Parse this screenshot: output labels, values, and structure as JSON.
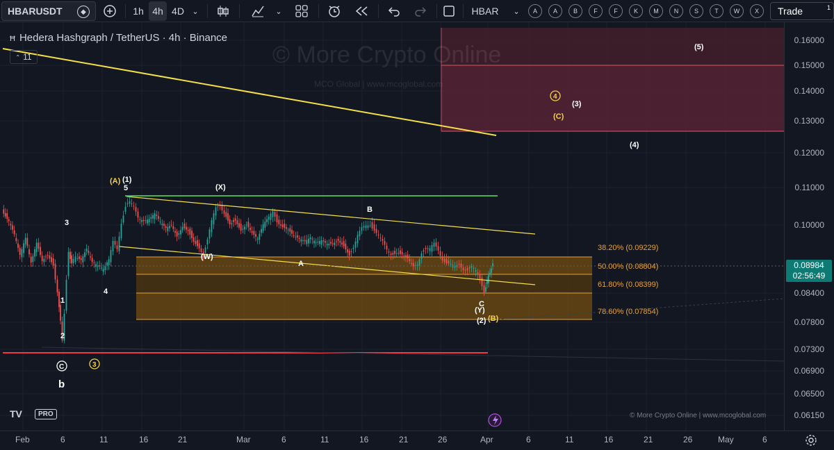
{
  "toolbar": {
    "symbol": "HBARUSDT",
    "timeframes": [
      "1h",
      "4h",
      "4D"
    ],
    "active_timeframe": "4h",
    "compare_symbol": "HBAR",
    "event_badges": [
      "A",
      "A",
      "B",
      "F",
      "F",
      "K",
      "M",
      "N",
      "S",
      "T",
      "W",
      "X"
    ],
    "trade_label": "Trade",
    "notification_count": "1"
  },
  "legend": {
    "title": "Hedera Hashgraph / TetherUS · 4h · Binance",
    "indicator_count": "11"
  },
  "watermark": {
    "main": "© More Crypto Online",
    "sub": "MCO Global   |   www.mcoglobal.com"
  },
  "footer": {
    "credit": "© More Crypto Online  |  www.mcoglobal.com",
    "logo_text": "TV",
    "pro_label": "PRO"
  },
  "price_axis": {
    "labels": [
      "0.16000",
      "0.15000",
      "0.14000",
      "0.13000",
      "0.12000",
      "0.11000",
      "0.10000",
      "0.08400",
      "0.07800",
      "0.07300",
      "0.06900",
      "0.06500",
      "0.06150"
    ],
    "current_price": "0.08984",
    "countdown": "02:56:49"
  },
  "time_axis": {
    "labels": [
      "Feb",
      "6",
      "11",
      "16",
      "21",
      "Mar",
      "6",
      "11",
      "16",
      "21",
      "26",
      "Apr",
      "6",
      "11",
      "16",
      "21",
      "26",
      "May",
      "6"
    ]
  },
  "fib_levels": [
    {
      "label": "38.20% (0.09229)"
    },
    {
      "label": "50.00% (0.08804)"
    },
    {
      "label": "61.80% (0.08399)"
    },
    {
      "label": "78.60% (0.07854)"
    }
  ],
  "wave_labels": {
    "A_paren_1": "(A)",
    "one_paren": "(1)",
    "five": "5",
    "X": "(X)",
    "W": "(W)",
    "A": "A",
    "B": "B",
    "C": "C",
    "Y": "(Y)",
    "two_paren": "(2)",
    "B_paren": "(B)",
    "three": "3",
    "four": "4",
    "one": "1",
    "two": "2",
    "c_circle": "C",
    "b": "b",
    "three_circle": "3",
    "four_circle": "4",
    "C_paren": "(C)",
    "three_paren": "(3)",
    "four_paren": "(4)",
    "five_paren": "(5)"
  },
  "colors": {
    "background": "#131722",
    "bull": "#26a69a",
    "bear": "#ef5350",
    "fib_zone": "#8a5a14",
    "target_zone": "#6b2a3a",
    "trendline": "#f5e04a",
    "resistance": "#4caf50",
    "support": "#f23645"
  }
}
